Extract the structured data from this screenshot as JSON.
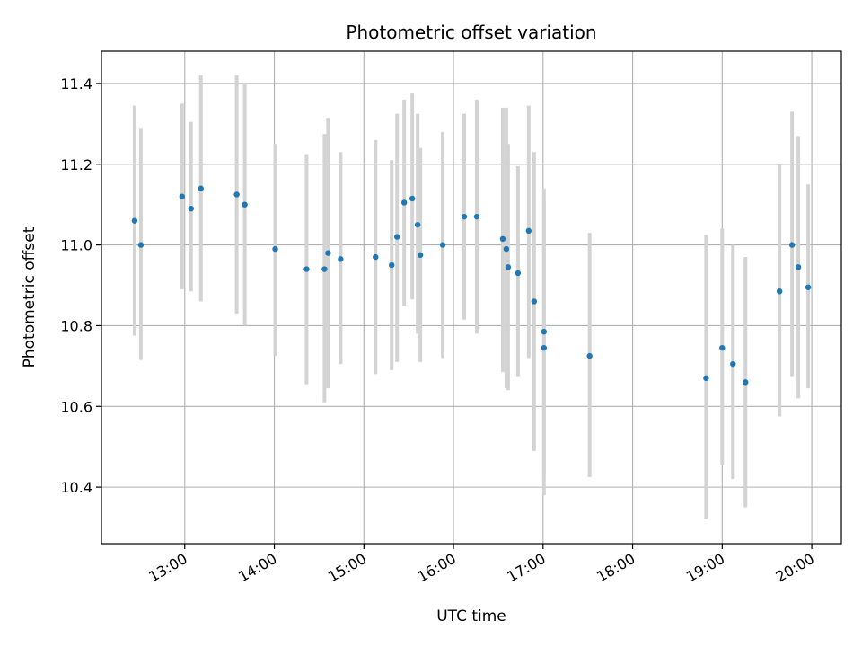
{
  "chart_data": {
    "type": "scatter",
    "title": "Photometric offset variation",
    "xlabel": "UTC time",
    "ylabel": "Photometric offset",
    "x_unit": "hours UTC",
    "xlim": [
      12.07,
      20.33
    ],
    "ylim": [
      10.26,
      11.48
    ],
    "x_ticks": [
      {
        "value": 13,
        "label": "13:00"
      },
      {
        "value": 14,
        "label": "14:00"
      },
      {
        "value": 15,
        "label": "15:00"
      },
      {
        "value": 16,
        "label": "16:00"
      },
      {
        "value": 17,
        "label": "17:00"
      },
      {
        "value": 18,
        "label": "18:00"
      },
      {
        "value": 19,
        "label": "19:00"
      },
      {
        "value": 20,
        "label": "20:00"
      }
    ],
    "y_ticks": [
      {
        "value": 10.4,
        "label": "10.4"
      },
      {
        "value": 10.6,
        "label": "10.6"
      },
      {
        "value": 10.8,
        "label": "10.8"
      },
      {
        "value": 11.0,
        "label": "11.0"
      },
      {
        "value": 11.2,
        "label": "11.2"
      },
      {
        "value": 11.4,
        "label": "11.4"
      }
    ],
    "grid": true,
    "colors": {
      "point": "#1f77b4",
      "errorbar": "#d3d3d3",
      "grid": "#b0b0b0"
    },
    "series": [
      {
        "points": [
          {
            "x": 12.44,
            "y": 11.06,
            "low": 10.775,
            "high": 11.345
          },
          {
            "x": 12.51,
            "y": 11.0,
            "low": 10.715,
            "high": 11.29
          },
          {
            "x": 12.97,
            "y": 11.12,
            "low": 10.89,
            "high": 11.35
          },
          {
            "x": 13.07,
            "y": 11.09,
            "low": 10.885,
            "high": 11.305
          },
          {
            "x": 13.18,
            "y": 11.14,
            "low": 10.86,
            "high": 11.42
          },
          {
            "x": 13.58,
            "y": 11.125,
            "low": 10.83,
            "high": 11.42
          },
          {
            "x": 13.67,
            "y": 11.1,
            "low": 10.8,
            "high": 11.4
          },
          {
            "x": 14.01,
            "y": 10.99,
            "low": 10.725,
            "high": 11.25
          },
          {
            "x": 14.36,
            "y": 10.94,
            "low": 10.655,
            "high": 11.225
          },
          {
            "x": 14.56,
            "y": 10.94,
            "low": 10.61,
            "high": 11.275
          },
          {
            "x": 14.6,
            "y": 10.98,
            "low": 10.645,
            "high": 11.315
          },
          {
            "x": 14.74,
            "y": 10.965,
            "low": 10.705,
            "high": 11.23
          },
          {
            "x": 15.13,
            "y": 10.97,
            "low": 10.68,
            "high": 11.26
          },
          {
            "x": 15.31,
            "y": 10.95,
            "low": 10.69,
            "high": 11.21
          },
          {
            "x": 15.37,
            "y": 11.02,
            "low": 10.71,
            "high": 11.325
          },
          {
            "x": 15.45,
            "y": 11.105,
            "low": 10.85,
            "high": 11.36
          },
          {
            "x": 15.54,
            "y": 11.115,
            "low": 10.865,
            "high": 11.375
          },
          {
            "x": 15.6,
            "y": 11.05,
            "low": 10.78,
            "high": 11.325
          },
          {
            "x": 15.63,
            "y": 10.975,
            "low": 10.71,
            "high": 11.24
          },
          {
            "x": 15.88,
            "y": 11.0,
            "low": 10.72,
            "high": 11.28
          },
          {
            "x": 16.12,
            "y": 11.07,
            "low": 10.815,
            "high": 11.325
          },
          {
            "x": 16.26,
            "y": 11.07,
            "low": 10.78,
            "high": 11.36
          },
          {
            "x": 16.55,
            "y": 11.015,
            "low": 10.685,
            "high": 11.34
          },
          {
            "x": 16.59,
            "y": 10.99,
            "low": 10.645,
            "high": 11.34
          },
          {
            "x": 16.61,
            "y": 10.945,
            "low": 10.64,
            "high": 11.25
          },
          {
            "x": 16.72,
            "y": 10.93,
            "low": 10.675,
            "high": 11.195
          },
          {
            "x": 16.84,
            "y": 11.035,
            "low": 10.72,
            "high": 11.345
          },
          {
            "x": 16.9,
            "y": 10.86,
            "low": 10.49,
            "high": 11.23
          },
          {
            "x": 17.01,
            "y": 10.785,
            "low": 10.43,
            "high": 11.14
          },
          {
            "x": 17.01,
            "y": 10.745,
            "low": 10.38,
            "high": 11.11
          },
          {
            "x": 17.52,
            "y": 10.725,
            "low": 10.425,
            "high": 11.03
          },
          {
            "x": 18.82,
            "y": 10.67,
            "low": 10.32,
            "high": 11.025
          },
          {
            "x": 19.0,
            "y": 10.745,
            "low": 10.455,
            "high": 11.04
          },
          {
            "x": 19.12,
            "y": 10.705,
            "low": 10.42,
            "high": 11.0
          },
          {
            "x": 19.26,
            "y": 10.66,
            "low": 10.35,
            "high": 10.97
          },
          {
            "x": 19.64,
            "y": 10.885,
            "low": 10.575,
            "high": 11.2
          },
          {
            "x": 19.78,
            "y": 11.0,
            "low": 10.675,
            "high": 11.33
          },
          {
            "x": 19.85,
            "y": 10.945,
            "low": 10.62,
            "high": 11.27
          },
          {
            "x": 19.96,
            "y": 10.895,
            "low": 10.645,
            "high": 11.15
          }
        ]
      }
    ]
  }
}
